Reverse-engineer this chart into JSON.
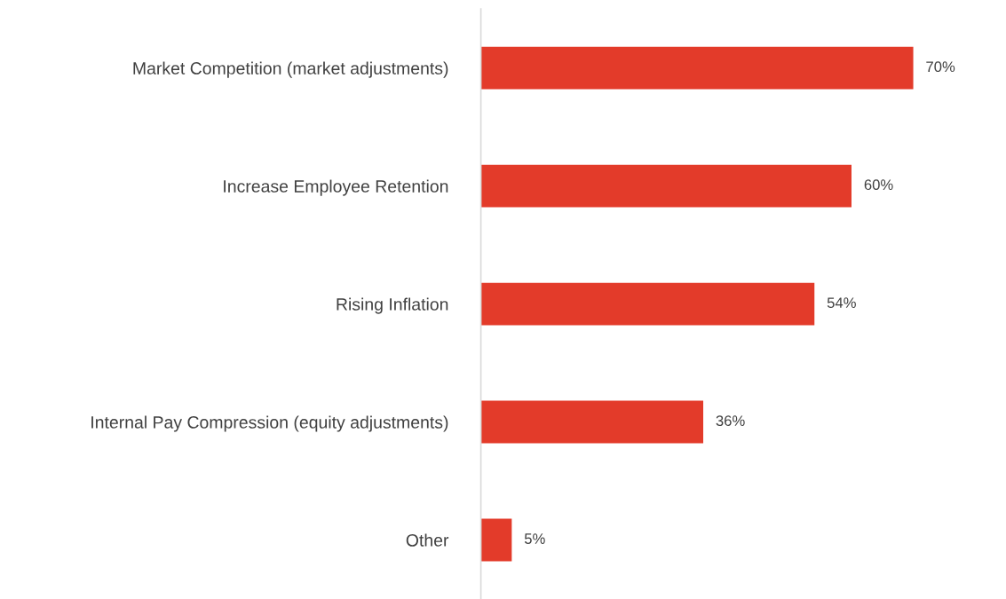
{
  "chart_data": {
    "type": "bar",
    "orientation": "horizontal",
    "categories": [
      "Market Competition (market adjustments)",
      "Increase Employee Retention",
      "Rising Inflation",
      "Internal Pay Compression (equity adjustments)",
      "Other"
    ],
    "values": [
      70,
      60,
      54,
      36,
      5
    ],
    "value_labels": [
      "70%",
      "60%",
      "54%",
      "36%",
      "5%"
    ],
    "color": "#e33b2a",
    "grid": false,
    "legend": false,
    "tick_labels": "y"
  }
}
